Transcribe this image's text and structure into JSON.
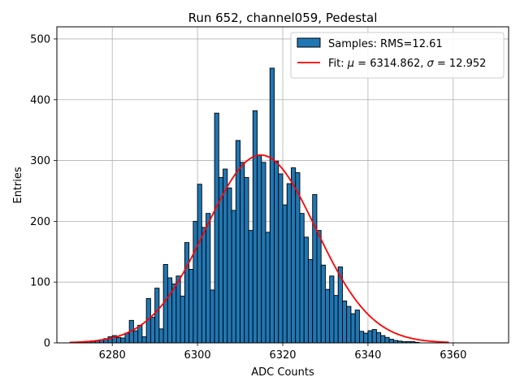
{
  "chart_data": {
    "type": "bar",
    "title": "Run 652, channel059, Pedestal",
    "xlabel": "ADC Counts",
    "ylabel": "Entries",
    "xlim": [
      6267,
      6373
    ],
    "ylim": [
      0,
      520
    ],
    "xticks": [
      6280,
      6300,
      6320,
      6340,
      6360
    ],
    "yticks": [
      0,
      100,
      200,
      300,
      400,
      500
    ],
    "grid": true,
    "legend_position": "top-right",
    "bar_color": "#1f77b4",
    "fit_color": "#ff0000",
    "bins": {
      "start": 6270,
      "width": 1,
      "counts": [
        0,
        0,
        1,
        1,
        2,
        3,
        4,
        5,
        7,
        10,
        12,
        9,
        8,
        16,
        37,
        20,
        29,
        10,
        73,
        42,
        90,
        23,
        129,
        107,
        97,
        110,
        77,
        165,
        121,
        200,
        261,
        190,
        213,
        87,
        378,
        272,
        286,
        255,
        218,
        333,
        297,
        272,
        185,
        382,
        309,
        297,
        182,
        452,
        299,
        278,
        227,
        262,
        288,
        280,
        213,
        174,
        137,
        244,
        185,
        128,
        88,
        110,
        78,
        125,
        69,
        60,
        48,
        54,
        19,
        16,
        20,
        22,
        17,
        12,
        9,
        6,
        4,
        3,
        2,
        2,
        2,
        1,
        0,
        0,
        0,
        0,
        0,
        0,
        0,
        0,
        0,
        0,
        0,
        0,
        0,
        0,
        0,
        0,
        0,
        0
      ]
    },
    "fit": {
      "mu": 6314.862,
      "sigma": 12.952,
      "amplitude": 309,
      "x_range": [
        6270,
        6359
      ]
    },
    "legend": [
      {
        "kind": "patch",
        "label": "Samples: RMS=12.61"
      },
      {
        "kind": "line",
        "label_prefix": "Fit: ",
        "mu_symbol": "μ",
        "mu_value": " = 6314.862, ",
        "sigma_symbol": "σ",
        "sigma_value": " = 12.952"
      }
    ]
  }
}
